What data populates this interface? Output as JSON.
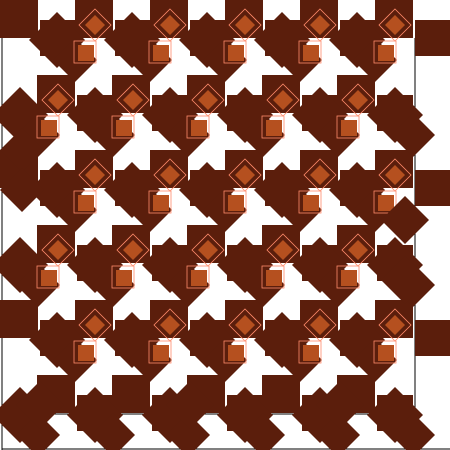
{
  "artwork": {
    "kind": "tessellation-pattern",
    "palette": {
      "background": "#ffffff",
      "frame": "#000000",
      "dark_tile": "#5b1e0c",
      "accent_tile": "#b5501f",
      "outline": "#ff8b6b"
    }
  }
}
